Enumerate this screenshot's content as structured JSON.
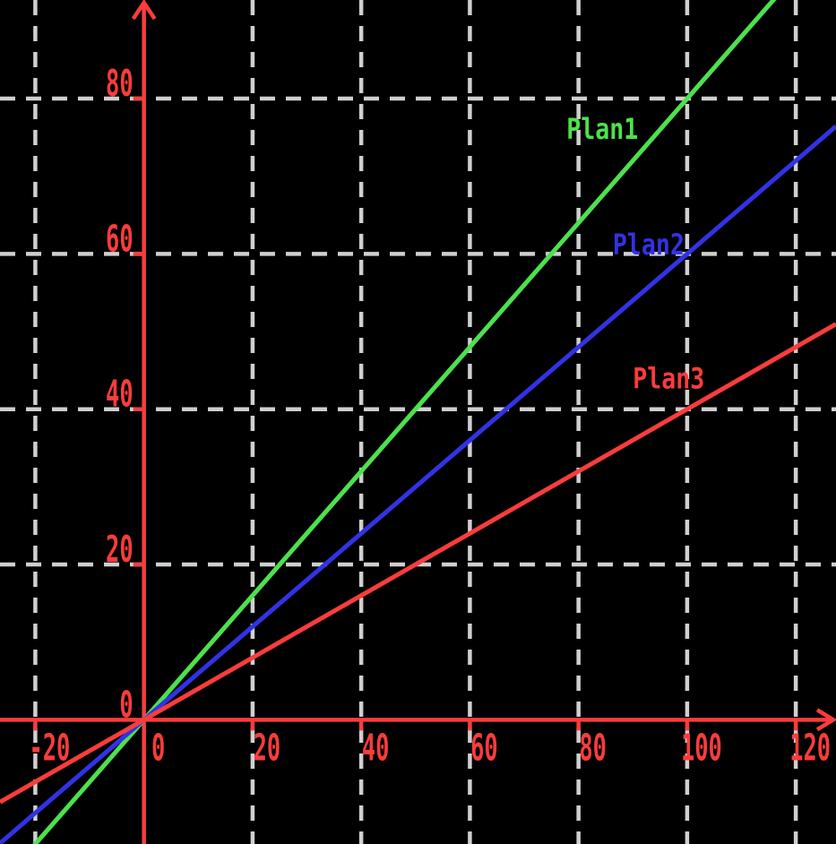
{
  "chart_data": {
    "type": "line",
    "title": "",
    "background_color": "#000000",
    "axis_color": "#fa3c3c",
    "grid_color": "#cfcfcf",
    "grid_style": "dashed",
    "legend_position": "inline-labels",
    "grid_on": true,
    "xlim": [
      -26.5,
      127.4
    ],
    "ylim": [
      -16.0,
      92.7
    ],
    "x_tick_labels": [
      "-20",
      "0",
      "20",
      "40",
      "60",
      "80",
      "100",
      "120"
    ],
    "x_tick_values": [
      -20,
      0,
      20,
      40,
      60,
      80,
      100,
      120
    ],
    "y_tick_labels": [
      "0",
      "20",
      "40",
      "60",
      "80"
    ],
    "y_tick_values": [
      0,
      20,
      40,
      60,
      80
    ],
    "x_gridline_values": [
      -20,
      20,
      40,
      60,
      80,
      100,
      120
    ],
    "y_gridline_values": [
      20,
      40,
      60,
      80
    ],
    "xlabel": "",
    "ylabel": "",
    "series": [
      {
        "name": "Plan1",
        "label": "Plan1",
        "color": "#4ce24c",
        "slope": 0.8,
        "intercept": 0,
        "equation": "y = 0.8x",
        "points": [
          [
            0,
            0
          ],
          [
            20,
            16
          ],
          [
            40,
            32
          ],
          [
            60,
            48
          ],
          [
            80,
            64
          ],
          [
            100,
            80
          ]
        ],
        "label_x": 77.8,
        "label_y": 74.8
      },
      {
        "name": "Plan2",
        "label": "Plan2",
        "color": "#3232e6",
        "slope": 0.6,
        "intercept": 0,
        "equation": "y = 0.6x",
        "points": [
          [
            0,
            0
          ],
          [
            20,
            12
          ],
          [
            40,
            24
          ],
          [
            60,
            36
          ],
          [
            80,
            48
          ],
          [
            100,
            60
          ]
        ],
        "label_x": 86.3,
        "label_y": 59.9
      },
      {
        "name": "Plan3",
        "label": "Plan3",
        "color": "#fa3c3c",
        "slope": 0.4,
        "intercept": 0,
        "equation": "y = 0.4x",
        "points": [
          [
            0,
            0
          ],
          [
            20,
            8
          ],
          [
            40,
            16
          ],
          [
            60,
            24
          ],
          [
            80,
            32
          ],
          [
            100,
            40
          ]
        ],
        "label_x": 90.0,
        "label_y": 42.7
      }
    ]
  }
}
